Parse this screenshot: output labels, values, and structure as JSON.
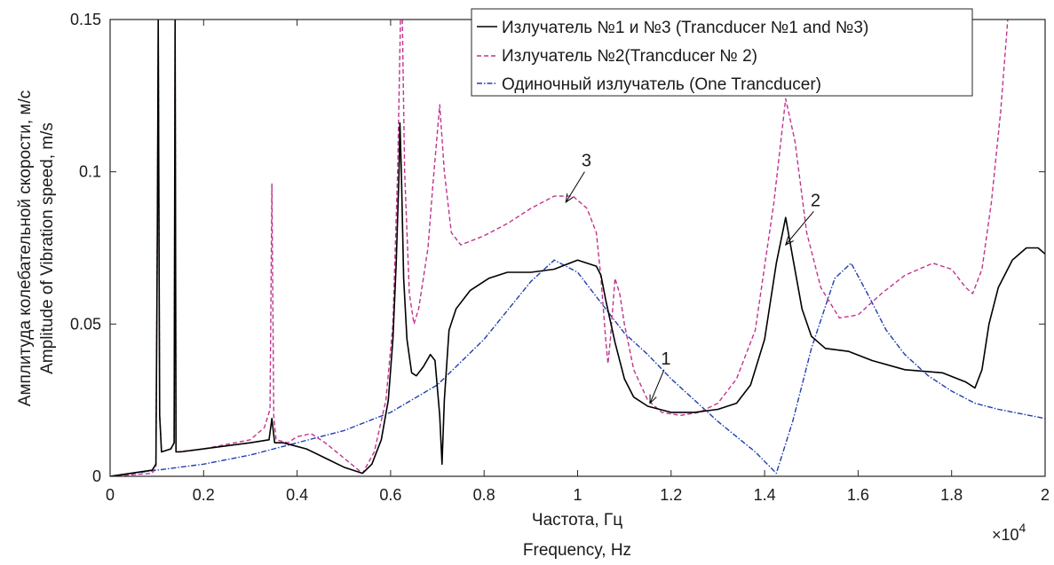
{
  "chart_data": {
    "type": "line",
    "xlabel": [
      "Частота, Гц",
      "Frequency, Hz"
    ],
    "ylabel": [
      "Амплитуда колебательной скорости, м/с",
      "Amplitude of Vibration speed, m/s"
    ],
    "x_multiplier": "×10",
    "x_multiplier_exp": "4",
    "xlim": [
      0,
      20000
    ],
    "ylim": [
      0,
      0.15
    ],
    "xticks": [
      0,
      2000,
      4000,
      6000,
      8000,
      10000,
      12000,
      14000,
      16000,
      18000,
      20000
    ],
    "xtick_labels": [
      "0",
      "0.2",
      "0.4",
      "0.6",
      "0.8",
      "1",
      "1.2",
      "1.4",
      "1.6",
      "1.8",
      "2"
    ],
    "yticks": [
      0,
      0.05,
      0.1,
      0.15
    ],
    "ytick_labels": [
      "0",
      "0.05",
      "0.1",
      "0.15"
    ],
    "grid": false,
    "legend_position": "top-right",
    "series": [
      {
        "name": "Излучатель №1 и №3 (Trancducer №1 and №3)",
        "color": "#000000",
        "dash": "solid",
        "points": [
          [
            0,
            0
          ],
          [
            900,
            0.002
          ],
          [
            980,
            0.004
          ],
          [
            1010,
            0.08
          ],
          [
            1030,
            0.15
          ],
          [
            1060,
            0.02
          ],
          [
            1100,
            0.008
          ],
          [
            1300,
            0.009
          ],
          [
            1370,
            0.011
          ],
          [
            1390,
            0.15
          ],
          [
            1410,
            0.008
          ],
          [
            1500,
            0.008
          ],
          [
            2000,
            0.009
          ],
          [
            3000,
            0.011
          ],
          [
            3400,
            0.012
          ],
          [
            3460,
            0.019
          ],
          [
            3520,
            0.011
          ],
          [
            3700,
            0.011
          ],
          [
            4200,
            0.009
          ],
          [
            4600,
            0.006
          ],
          [
            5000,
            0.003
          ],
          [
            5400,
            0.001
          ],
          [
            5600,
            0.004
          ],
          [
            5800,
            0.012
          ],
          [
            5950,
            0.025
          ],
          [
            6050,
            0.045
          ],
          [
            6120,
            0.07
          ],
          [
            6180,
            0.1
          ],
          [
            6200,
            0.116
          ],
          [
            6230,
            0.1
          ],
          [
            6280,
            0.065
          ],
          [
            6350,
            0.045
          ],
          [
            6450,
            0.034
          ],
          [
            6550,
            0.033
          ],
          [
            6700,
            0.036
          ],
          [
            6850,
            0.04
          ],
          [
            6950,
            0.038
          ],
          [
            7050,
            0.02
          ],
          [
            7100,
            0.004
          ],
          [
            7150,
            0.025
          ],
          [
            7250,
            0.048
          ],
          [
            7400,
            0.055
          ],
          [
            7700,
            0.061
          ],
          [
            8100,
            0.065
          ],
          [
            8500,
            0.067
          ],
          [
            9000,
            0.067
          ],
          [
            9500,
            0.068
          ],
          [
            10000,
            0.071
          ],
          [
            10400,
            0.069
          ],
          [
            10500,
            0.066
          ],
          [
            10600,
            0.058
          ],
          [
            10800,
            0.044
          ],
          [
            11000,
            0.032
          ],
          [
            11200,
            0.026
          ],
          [
            11500,
            0.023
          ],
          [
            12000,
            0.021
          ],
          [
            12500,
            0.021
          ],
          [
            13000,
            0.022
          ],
          [
            13400,
            0.024
          ],
          [
            13700,
            0.03
          ],
          [
            14000,
            0.045
          ],
          [
            14250,
            0.07
          ],
          [
            14450,
            0.085
          ],
          [
            14600,
            0.072
          ],
          [
            14800,
            0.055
          ],
          [
            15000,
            0.046
          ],
          [
            15300,
            0.042
          ],
          [
            15800,
            0.041
          ],
          [
            16300,
            0.038
          ],
          [
            17000,
            0.035
          ],
          [
            17800,
            0.034
          ],
          [
            18300,
            0.031
          ],
          [
            18500,
            0.029
          ],
          [
            18650,
            0.035
          ],
          [
            18800,
            0.05
          ],
          [
            19000,
            0.062
          ],
          [
            19300,
            0.071
          ],
          [
            19600,
            0.075
          ],
          [
            19850,
            0.075
          ],
          [
            20000,
            0.073
          ]
        ]
      },
      {
        "name": "Излучатель №2(Trancducer № 2)",
        "color": "#c0348e",
        "dash": "dashed",
        "points": [
          [
            0,
            0
          ],
          [
            900,
            0.001
          ],
          [
            980,
            0.003
          ],
          [
            1010,
            0.08
          ],
          [
            1030,
            0.15
          ],
          [
            1060,
            0.02
          ],
          [
            1100,
            0.008
          ],
          [
            1300,
            0.009
          ],
          [
            1370,
            0.011
          ],
          [
            1390,
            0.15
          ],
          [
            1410,
            0.008
          ],
          [
            2000,
            0.009
          ],
          [
            3000,
            0.012
          ],
          [
            3300,
            0.016
          ],
          [
            3420,
            0.022
          ],
          [
            3460,
            0.096
          ],
          [
            3500,
            0.02
          ],
          [
            3550,
            0.012
          ],
          [
            3800,
            0.011
          ],
          [
            4000,
            0.013
          ],
          [
            4300,
            0.014
          ],
          [
            4600,
            0.011
          ],
          [
            5000,
            0.006
          ],
          [
            5400,
            0.001
          ],
          [
            5650,
            0.008
          ],
          [
            5900,
            0.025
          ],
          [
            6050,
            0.05
          ],
          [
            6150,
            0.1
          ],
          [
            6210,
            0.15
          ],
          [
            6250,
            0.15
          ],
          [
            6300,
            0.1
          ],
          [
            6400,
            0.06
          ],
          [
            6500,
            0.05
          ],
          [
            6600,
            0.055
          ],
          [
            6800,
            0.075
          ],
          [
            6900,
            0.095
          ],
          [
            7050,
            0.122
          ],
          [
            7150,
            0.1
          ],
          [
            7300,
            0.08
          ],
          [
            7500,
            0.076
          ],
          [
            8000,
            0.079
          ],
          [
            8500,
            0.083
          ],
          [
            9000,
            0.088
          ],
          [
            9500,
            0.092
          ],
          [
            9900,
            0.092
          ],
          [
            10200,
            0.088
          ],
          [
            10400,
            0.08
          ],
          [
            10500,
            0.065
          ],
          [
            10600,
            0.045
          ],
          [
            10650,
            0.037
          ],
          [
            10700,
            0.045
          ],
          [
            10800,
            0.065
          ],
          [
            10900,
            0.06
          ],
          [
            11000,
            0.05
          ],
          [
            11200,
            0.035
          ],
          [
            11500,
            0.025
          ],
          [
            11800,
            0.021
          ],
          [
            12200,
            0.02
          ],
          [
            12600,
            0.021
          ],
          [
            13000,
            0.024
          ],
          [
            13400,
            0.032
          ],
          [
            13800,
            0.048
          ],
          [
            14200,
            0.09
          ],
          [
            14450,
            0.124
          ],
          [
            14650,
            0.11
          ],
          [
            14900,
            0.08
          ],
          [
            15200,
            0.062
          ],
          [
            15600,
            0.052
          ],
          [
            16000,
            0.053
          ],
          [
            16500,
            0.06
          ],
          [
            17000,
            0.066
          ],
          [
            17600,
            0.07
          ],
          [
            18000,
            0.068
          ],
          [
            18300,
            0.062
          ],
          [
            18450,
            0.06
          ],
          [
            18650,
            0.068
          ],
          [
            18850,
            0.09
          ],
          [
            19050,
            0.12
          ],
          [
            19200,
            0.15
          ]
        ]
      },
      {
        "name": "Одиночный излучатель (One Trancducer)",
        "color": "#1f3fb0",
        "dash": "dashdot",
        "points": [
          [
            0,
            0
          ],
          [
            1000,
            0.002
          ],
          [
            2000,
            0.004
          ],
          [
            3000,
            0.007
          ],
          [
            4000,
            0.011
          ],
          [
            5000,
            0.015
          ],
          [
            6000,
            0.021
          ],
          [
            7000,
            0.03
          ],
          [
            8000,
            0.045
          ],
          [
            9000,
            0.064
          ],
          [
            9500,
            0.071
          ],
          [
            10000,
            0.067
          ],
          [
            10500,
            0.057
          ],
          [
            11000,
            0.047
          ],
          [
            11500,
            0.04
          ],
          [
            12000,
            0.032
          ],
          [
            13000,
            0.018
          ],
          [
            13800,
            0.008
          ],
          [
            14250,
            0.001
          ],
          [
            14600,
            0.018
          ],
          [
            15000,
            0.042
          ],
          [
            15500,
            0.065
          ],
          [
            15850,
            0.07
          ],
          [
            16200,
            0.06
          ],
          [
            16600,
            0.048
          ],
          [
            17000,
            0.04
          ],
          [
            17500,
            0.033
          ],
          [
            18000,
            0.028
          ],
          [
            18500,
            0.024
          ],
          [
            19000,
            0.022
          ],
          [
            20000,
            0.019
          ]
        ]
      }
    ],
    "annotations": [
      {
        "text": "1",
        "arrow_to": [
          11550,
          0.024
        ],
        "arrow_from": [
          11850,
          0.035
        ]
      },
      {
        "text": "2",
        "arrow_to": [
          14450,
          0.076
        ],
        "arrow_from": [
          15050,
          0.087
        ]
      },
      {
        "text": "3",
        "arrow_to": [
          9750,
          0.09
        ],
        "arrow_from": [
          10150,
          0.1
        ]
      }
    ]
  }
}
